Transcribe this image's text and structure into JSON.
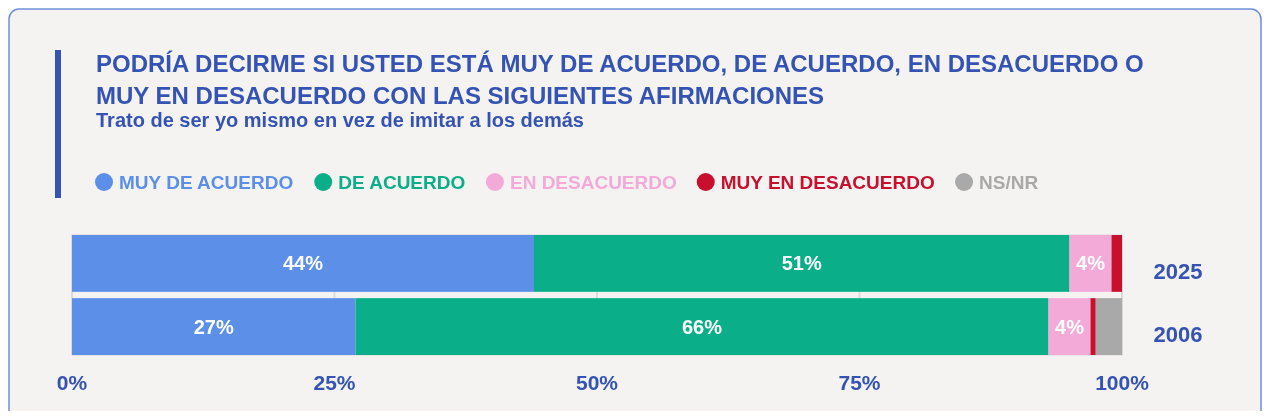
{
  "chart_data": {
    "type": "bar",
    "orientation": "horizontal",
    "stacked": true,
    "title": "PODRÍA DECIRME SI USTED ESTÁ MUY DE ACUERDO, DE ACUERDO, EN DESACUERDO O MUY EN DESACUERDO CON LAS SIGUIENTES AFIRMACIONES",
    "subtitle": "Trato de ser yo mismo en vez de imitar a los demás",
    "categories": [
      "2025",
      "2006"
    ],
    "series": [
      {
        "name": "MUY DE ACUERDO",
        "color": "#5b8fe8",
        "values": [
          44,
          27
        ],
        "value_labels": [
          "44%",
          "27%"
        ]
      },
      {
        "name": "DE ACUERDO",
        "color": "#0aaf8a",
        "values": [
          51,
          66
        ],
        "value_labels": [
          "51%",
          "66%"
        ]
      },
      {
        "name": "EN DESACUERDO",
        "color": "#f4aad8",
        "values": [
          4,
          4
        ],
        "value_labels": [
          "4%",
          "4%"
        ]
      },
      {
        "name": "MUY EN DESACUERDO",
        "color": "#c8102e",
        "values": [
          1,
          0.5
        ],
        "value_labels": [
          null,
          null
        ]
      },
      {
        "name": "NS/NR",
        "color": "#a9a9a9",
        "values": [
          0,
          2.5
        ],
        "value_labels": [
          null,
          null
        ]
      }
    ],
    "xlim": [
      0,
      100
    ],
    "xticks": [
      {
        "value": 0,
        "label": "0%"
      },
      {
        "value": 25,
        "label": "25%"
      },
      {
        "value": 50,
        "label": "50%"
      },
      {
        "value": 75,
        "label": "75%"
      },
      {
        "value": 100,
        "label": "100%"
      }
    ],
    "grid": "x",
    "legend": "top"
  }
}
